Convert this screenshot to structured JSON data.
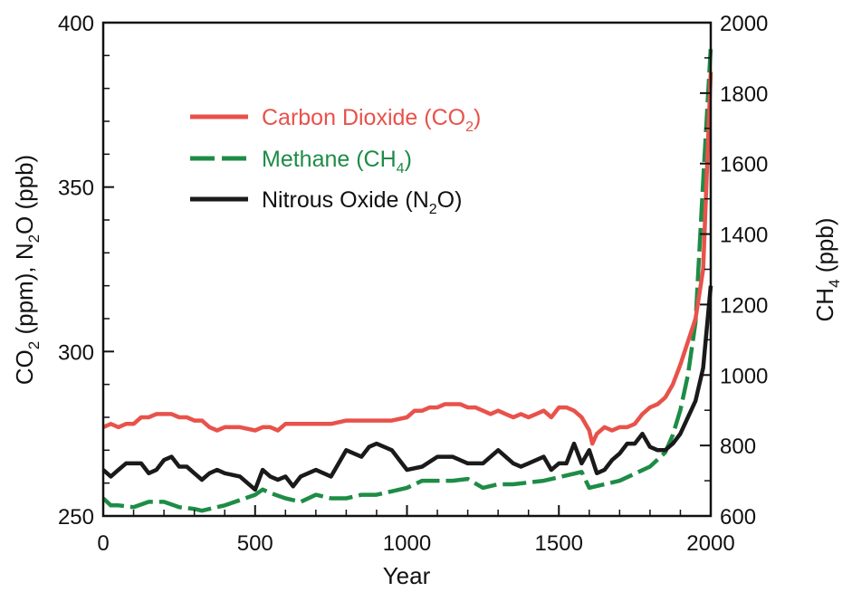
{
  "chart_data": {
    "type": "line",
    "title": "",
    "xlabel": "Year",
    "ylabel_left": {
      "pre": "CO",
      "sub1": "2",
      "mid": " (ppm), N",
      "sub2": "2",
      "post": "O (ppb)"
    },
    "ylabel_right": {
      "pre": "CH",
      "sub": "4",
      "post": " (ppb)"
    },
    "xlim": [
      0,
      2000
    ],
    "ylim_left": [
      250,
      400
    ],
    "ylim_right": [
      600,
      2000
    ],
    "x_ticks": [
      0,
      500,
      1000,
      1500,
      2000
    ],
    "y_left_ticks": [
      250,
      300,
      350,
      400
    ],
    "y_right_ticks": [
      600,
      800,
      1000,
      1200,
      1400,
      1600,
      1800,
      2000
    ],
    "grid": false,
    "legend_position": "top-left",
    "series": [
      {
        "key": "co2",
        "legend": {
          "pre": "Carbon Dioxide (CO",
          "sub": "2",
          "post": ")"
        },
        "axis": "left",
        "color": "#e8524a",
        "dash": "solid",
        "x": [
          0,
          25,
          50,
          75,
          100,
          125,
          150,
          175,
          200,
          225,
          250,
          275,
          300,
          325,
          350,
          375,
          400,
          450,
          500,
          525,
          550,
          575,
          600,
          650,
          700,
          750,
          800,
          850,
          900,
          950,
          1000,
          1025,
          1050,
          1075,
          1100,
          1125,
          1150,
          1175,
          1200,
          1225,
          1250,
          1275,
          1300,
          1325,
          1350,
          1375,
          1400,
          1425,
          1450,
          1475,
          1500,
          1525,
          1550,
          1575,
          1600,
          1610,
          1625,
          1650,
          1675,
          1700,
          1725,
          1750,
          1775,
          1800,
          1825,
          1850,
          1875,
          1900,
          1925,
          1950,
          1975,
          2000
        ],
        "y": [
          277,
          278,
          277,
          278,
          278,
          280,
          280,
          281,
          281,
          281,
          280,
          280,
          279,
          279,
          277,
          276,
          277,
          277,
          276,
          277,
          277,
          276,
          278,
          278,
          278,
          278,
          279,
          279,
          279,
          279,
          280,
          282,
          282,
          283,
          283,
          284,
          284,
          284,
          283,
          283,
          282,
          281,
          282,
          281,
          280,
          281,
          280,
          281,
          282,
          280,
          283,
          283,
          282,
          280,
          276,
          272,
          275,
          277,
          276,
          277,
          277,
          278,
          281,
          283,
          284,
          286,
          290,
          296,
          303,
          310,
          325,
          385
        ]
      },
      {
        "key": "ch4",
        "legend": {
          "pre": "Methane (CH",
          "sub": "4",
          "post": ")"
        },
        "axis": "right",
        "color": "#1e8c46",
        "dash": "long-dash",
        "x": [
          0,
          25,
          50,
          100,
          150,
          200,
          250,
          300,
          325,
          350,
          400,
          450,
          500,
          525,
          550,
          600,
          650,
          700,
          750,
          800,
          850,
          900,
          950,
          1000,
          1050,
          1100,
          1150,
          1200,
          1250,
          1300,
          1350,
          1400,
          1450,
          1500,
          1550,
          1575,
          1600,
          1650,
          1700,
          1750,
          1800,
          1850,
          1875,
          1900,
          1925,
          1950,
          1975,
          2000
        ],
        "y": [
          650,
          630,
          630,
          625,
          640,
          640,
          625,
          620,
          615,
          620,
          630,
          645,
          660,
          675,
          665,
          650,
          640,
          660,
          650,
          650,
          660,
          660,
          670,
          680,
          700,
          700,
          700,
          705,
          680,
          690,
          690,
          695,
          700,
          710,
          720,
          725,
          680,
          690,
          700,
          720,
          740,
          780,
          830,
          900,
          1000,
          1150,
          1550,
          1930
        ]
      },
      {
        "key": "n2o",
        "legend": {
          "pre": "Nitrous Oxide (N",
          "sub": "2",
          "post": "O)"
        },
        "axis": "left",
        "color": "#1a1a1a",
        "dash": "solid",
        "x": [
          0,
          25,
          50,
          75,
          100,
          125,
          150,
          175,
          200,
          225,
          250,
          275,
          300,
          325,
          350,
          375,
          400,
          450,
          500,
          525,
          550,
          575,
          600,
          625,
          650,
          700,
          750,
          800,
          850,
          875,
          900,
          950,
          1000,
          1050,
          1100,
          1150,
          1200,
          1250,
          1300,
          1325,
          1350,
          1375,
          1400,
          1450,
          1475,
          1500,
          1525,
          1550,
          1575,
          1600,
          1625,
          1650,
          1675,
          1700,
          1725,
          1750,
          1775,
          1800,
          1825,
          1850,
          1875,
          1900,
          1925,
          1950,
          1975,
          2000
        ],
        "y": [
          264,
          262,
          264,
          266,
          266,
          266,
          263,
          264,
          267,
          268,
          265,
          265,
          263,
          261,
          263,
          264,
          263,
          262,
          258,
          264,
          262,
          261,
          262,
          259,
          262,
          264,
          262,
          270,
          268,
          271,
          272,
          270,
          264,
          265,
          268,
          268,
          266,
          266,
          270,
          268,
          266,
          265,
          266,
          268,
          264,
          266,
          266,
          272,
          266,
          270,
          263,
          264,
          267,
          269,
          272,
          272,
          275,
          271,
          270,
          270,
          272,
          275,
          280,
          285,
          295,
          320
        ]
      }
    ]
  }
}
